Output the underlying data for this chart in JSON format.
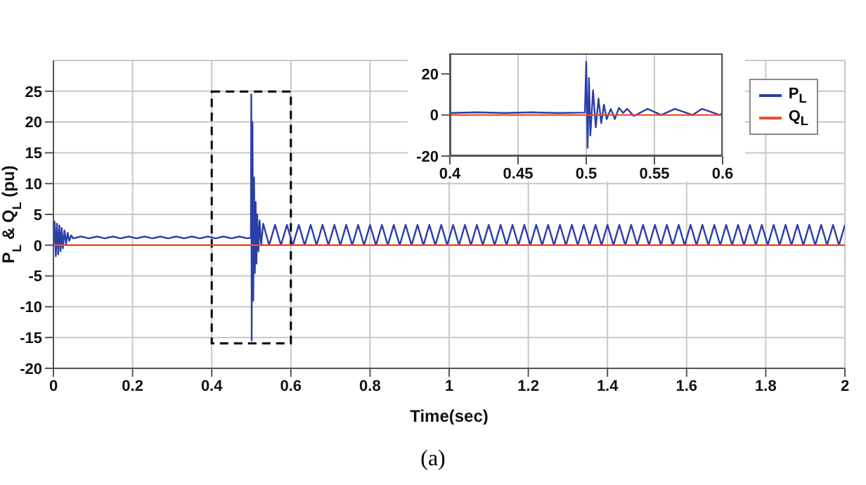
{
  "chart_data": [
    {
      "type": "line",
      "xlabel": "Time(sec)",
      "ylabel": "P$_{L}$ & Q$_{L}$ (pu)",
      "xlim": [
        0,
        2
      ],
      "ylim": [
        -20,
        30
      ],
      "xticks": [
        0,
        0.2,
        0.4,
        0.6,
        0.8,
        1,
        1.2,
        1.4,
        1.6,
        1.8,
        2
      ],
      "yticks": [
        -20,
        -15,
        -10,
        -5,
        0,
        5,
        10,
        15,
        20,
        25
      ],
      "grid": true,
      "legend": "top right",
      "marker": "none",
      "line_style": "solid",
      "annotations": [
        "(a)"
      ],
      "series": [
        {
          "name": "P$_{L}$",
          "color": "#2b3fa8",
          "x": [
            0,
            0.003,
            0.006,
            0.009,
            0.012,
            0.015,
            0.018,
            0.021,
            0.024,
            0.028,
            0.032,
            0.036,
            0.04,
            0.045,
            0.05,
            0.07,
            0.09,
            0.11,
            0.13,
            0.15,
            0.17,
            0.19,
            0.21,
            0.23,
            0.25,
            0.27,
            0.29,
            0.31,
            0.33,
            0.35,
            0.37,
            0.39,
            0.41,
            0.43,
            0.45,
            0.47,
            0.49,
            0.499,
            0.5,
            0.501,
            0.503,
            0.505,
            0.507,
            0.509,
            0.511,
            0.513,
            0.515,
            0.518,
            0.521,
            0.525,
            0.53,
            0.545,
            0.56,
            0.575,
            0.59,
            0.605,
            0.62,
            0.635,
            0.65,
            0.665,
            0.68,
            0.695,
            0.71,
            0.725,
            0.74,
            0.755,
            0.77,
            0.785,
            0.8,
            0.815,
            0.83,
            0.845,
            0.86,
            0.875,
            0.89,
            0.905,
            0.92,
            0.935,
            0.95,
            0.965,
            0.98,
            0.995,
            1.01,
            1.025,
            1.04,
            1.055,
            1.07,
            1.085,
            1.1,
            1.115,
            1.13,
            1.145,
            1.16,
            1.175,
            1.19,
            1.205,
            1.22,
            1.235,
            1.25,
            1.265,
            1.28,
            1.295,
            1.31,
            1.325,
            1.34,
            1.355,
            1.37,
            1.385,
            1.4,
            1.415,
            1.43,
            1.445,
            1.46,
            1.475,
            1.49,
            1.505,
            1.52,
            1.535,
            1.55,
            1.565,
            1.58,
            1.595,
            1.61,
            1.625,
            1.64,
            1.655,
            1.67,
            1.685,
            1.7,
            1.715,
            1.73,
            1.745,
            1.76,
            1.775,
            1.79,
            1.805,
            1.82,
            1.835,
            1.85,
            1.865,
            1.88,
            1.895,
            1.91,
            1.925,
            1.94,
            1.955,
            1.97,
            1.985,
            2
          ],
          "values": [
            0,
            3.8,
            -1.8,
            3.5,
            -1.5,
            3.2,
            -1,
            2.8,
            -0.5,
            2.4,
            0.2,
            2,
            0.7,
            1.6,
            1.1,
            1.4,
            1.1,
            1.4,
            1.1,
            1.4,
            1.1,
            1.4,
            1.1,
            1.4,
            1.1,
            1.4,
            1.1,
            1.4,
            1.1,
            1.4,
            1.1,
            1.4,
            1.1,
            1.4,
            1.1,
            1.4,
            1.1,
            1.2,
            24.5,
            -15.5,
            20,
            -9,
            11,
            -4.5,
            7,
            -3,
            5,
            -1,
            4,
            0,
            3.5,
            0,
            3.3,
            0,
            3.3,
            0,
            3.3,
            0,
            3.3,
            0,
            3.3,
            0,
            3.3,
            0,
            3.3,
            0,
            3.3,
            0,
            3.3,
            0,
            3.3,
            0,
            3.3,
            0,
            3.3,
            0,
            3.3,
            0,
            3.3,
            0,
            3.3,
            0,
            3.3,
            0,
            3.3,
            0,
            3.3,
            0,
            3.3,
            0,
            3.3,
            0,
            3.3,
            0,
            3.3,
            0,
            3.3,
            0,
            3.3,
            0,
            3.3,
            0,
            3.3,
            0,
            3.3,
            0,
            3.3,
            0,
            3.3,
            0,
            3.3,
            0,
            3.3,
            0,
            3.3,
            0,
            3.3,
            0,
            3.3,
            0,
            3.3,
            0,
            3.3,
            0,
            3.3,
            0,
            3.3,
            0,
            3.3,
            0,
            3.3,
            0,
            3.3,
            0,
            3.3,
            0,
            3.3,
            0,
            3.3,
            0,
            3.3,
            0,
            3.3,
            0,
            3.3,
            0,
            3.3,
            0,
            3.3
          ]
        },
        {
          "name": "Q$_{L}$",
          "color": "#e8502a",
          "x": [
            0,
            2
          ],
          "values": [
            0,
            0
          ]
        }
      ]
    },
    {
      "type": "line",
      "xlim": [
        0.4,
        0.6
      ],
      "ylim": [
        -20,
        30
      ],
      "xticks": [
        0.4,
        0.45,
        0.5,
        0.55,
        0.6
      ],
      "yticks": [
        -20,
        0,
        20
      ],
      "grid": "x",
      "marker": "none",
      "line_style": "solid",
      "series": [
        {
          "color": "#2b3fa8",
          "x": [
            0.4,
            0.42,
            0.44,
            0.46,
            0.48,
            0.499,
            0.5,
            0.501,
            0.502,
            0.503,
            0.505,
            0.507,
            0.509,
            0.511,
            0.513,
            0.515,
            0.518,
            0.521,
            0.524,
            0.527,
            0.53,
            0.535,
            0.545,
            0.555,
            0.565,
            0.578,
            0.585,
            0.598,
            0.6
          ],
          "values": [
            1,
            1.3,
            1,
            1.3,
            1,
            1.2,
            26,
            -16,
            18,
            -10,
            12,
            -6,
            8,
            -4,
            5,
            -2,
            3,
            -2,
            3.5,
            1,
            3,
            -0.5,
            3,
            0,
            3,
            0,
            3,
            0,
            1
          ]
        },
        {
          "color": "#e8502a",
          "x": [
            0.4,
            0.6
          ],
          "values": [
            0,
            0
          ]
        }
      ]
    }
  ]
}
